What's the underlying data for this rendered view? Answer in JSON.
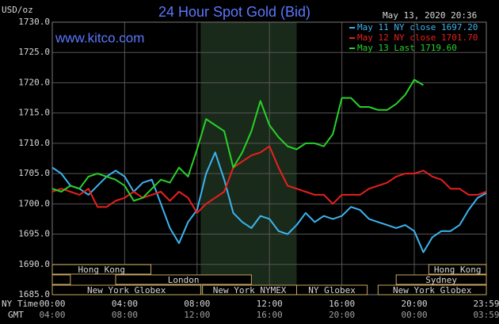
{
  "chart_data": {
    "type": "line",
    "title": "24 Hour Spot Gold (Bid)",
    "y_unit": "USD/oz",
    "website": "www.kitco.com",
    "timestamp": "May 13, 2020 20:36",
    "x_row_label": "NY Time",
    "x2_row_label": "GMT",
    "x": [
      0,
      0.5,
      1,
      1.5,
      2,
      2.5,
      3,
      3.5,
      4,
      4.5,
      5,
      5.5,
      6,
      6.5,
      7,
      7.5,
      8,
      8.5,
      9,
      9.5,
      10,
      10.5,
      11,
      11.5,
      12,
      12.5,
      13,
      13.5,
      14,
      14.5,
      15,
      15.5,
      16,
      16.5,
      17,
      17.5,
      18,
      18.5,
      19,
      19.5,
      20,
      20.5,
      21,
      21.5,
      22,
      22.5,
      23,
      23.5,
      23.98
    ],
    "xlim": [
      0,
      23.98
    ],
    "xticks": [
      {
        "value": 0,
        "label": "00:00"
      },
      {
        "value": 4,
        "label": "04:00"
      },
      {
        "value": 8,
        "label": "08:00"
      },
      {
        "value": 12,
        "label": "12:00"
      },
      {
        "value": 16,
        "label": "16:00"
      },
      {
        "value": 20,
        "label": "20:00"
      },
      {
        "value": 23.98,
        "label": "23:59"
      }
    ],
    "x2ticks": [
      {
        "value": 0,
        "label": "04:00"
      },
      {
        "value": 4,
        "label": "08:00"
      },
      {
        "value": 8,
        "label": "12:00"
      },
      {
        "value": 12,
        "label": "16:00"
      },
      {
        "value": 16,
        "label": "20:00"
      },
      {
        "value": 20,
        "label": "00:00"
      },
      {
        "value": 23.98,
        "label": "03:59"
      }
    ],
    "ylim": [
      1685,
      1730
    ],
    "yticks": [
      {
        "value": 1685,
        "label": "1685.0"
      },
      {
        "value": 1690,
        "label": "1690.0"
      },
      {
        "value": 1695,
        "label": "1695.0"
      },
      {
        "value": 1700,
        "label": "1700.0"
      },
      {
        "value": 1705,
        "label": "1705.0"
      },
      {
        "value": 1710,
        "label": "1710.0"
      },
      {
        "value": 1715,
        "label": "1715.0"
      },
      {
        "value": 1720,
        "label": "1720.0"
      },
      {
        "value": 1725,
        "label": "1725.0"
      },
      {
        "value": 1730,
        "label": "1730.0"
      }
    ],
    "grid": true,
    "shaded_range": [
      8.2,
      13.5
    ],
    "sessions": [
      {
        "label": "Hong Kong",
        "start": 0,
        "end": 5.45,
        "row": 0
      },
      {
        "label": "Hong Kong",
        "start": 20.8,
        "end": 23.98,
        "row": 0
      },
      {
        "start": 0,
        "end": 1.0,
        "row": 1
      },
      {
        "label": "London",
        "start": 3.5,
        "end": 11.0,
        "row": 1
      },
      {
        "label": "Sydney",
        "start": 19.0,
        "end": 23.98,
        "row": 1
      },
      {
        "label": "New York Globex",
        "start": 0,
        "end": 8.2,
        "row": 2
      },
      {
        "label": "New York NYMEX",
        "start": 8.3,
        "end": 13.5,
        "row": 2
      },
      {
        "label": "NY Globex",
        "start": 13.5,
        "end": 17.4,
        "row": 2
      },
      {
        "label": "New York Globex",
        "start": 18.0,
        "end": 23.98,
        "row": 2
      }
    ],
    "series": [
      {
        "name": "May 11 NY close 1697.20",
        "color": "#3cb4f0",
        "values": [
          1706,
          1705,
          1703,
          1702.5,
          1701.5,
          1703,
          1704.5,
          1705.5,
          1704.5,
          1702,
          1703.5,
          1704,
          1700,
          1696,
          1693.5,
          1697,
          1699,
          1705,
          1708.5,
          1704,
          1698.5,
          1697,
          1696,
          1698,
          1697.5,
          1695.5,
          1695,
          1696.5,
          1698.5,
          1697,
          1698,
          1697.5,
          1698,
          1699.5,
          1699,
          1697.5,
          1697,
          1696.5,
          1696,
          1696.5,
          1695.5,
          1692,
          1694.5,
          1695.5,
          1695.5,
          1696.5,
          1699,
          1701,
          1701.8
        ]
      },
      {
        "name": "May 12 NY close 1701.70",
        "color": "#e8201c",
        "values": [
          1702,
          1702.5,
          1702,
          1701.5,
          1702.5,
          1699.5,
          1699.5,
          1700.5,
          1701,
          1702,
          1701,
          1701.5,
          1702,
          1700.5,
          1702,
          1701,
          1698.5,
          1700,
          1701,
          1702,
          1706,
          1707,
          1708,
          1708.5,
          1709.5,
          1706,
          1703,
          1702.5,
          1702,
          1701.5,
          1701.5,
          1700,
          1701.5,
          1701.5,
          1701.5,
          1702.5,
          1703,
          1703.5,
          1704.5,
          1705,
          1705,
          1705.5,
          1704.5,
          1704,
          1702.5,
          1702.5,
          1701.5,
          1701.5,
          1702
        ]
      },
      {
        "name": "May 13 Last 1719.60",
        "color": "#28d228",
        "values": [
          1702.5,
          1702,
          1703,
          1702.5,
          1704.5,
          1705,
          1704.5,
          1704,
          1703,
          1700.5,
          1701,
          1702.5,
          1704,
          1703.5,
          1706,
          1704.5,
          1709,
          1714,
          1713,
          1712,
          1706,
          1708.5,
          1712,
          1717,
          1713,
          1711,
          1709.5,
          1709,
          1710,
          1710,
          1709.5,
          1711.5,
          1717.5,
          1717.5,
          1716,
          1716,
          1715.5,
          1715.5,
          1716.5,
          1718,
          1720.5,
          1719.6,
          null,
          null,
          null,
          null,
          null,
          null,
          null
        ]
      }
    ]
  }
}
